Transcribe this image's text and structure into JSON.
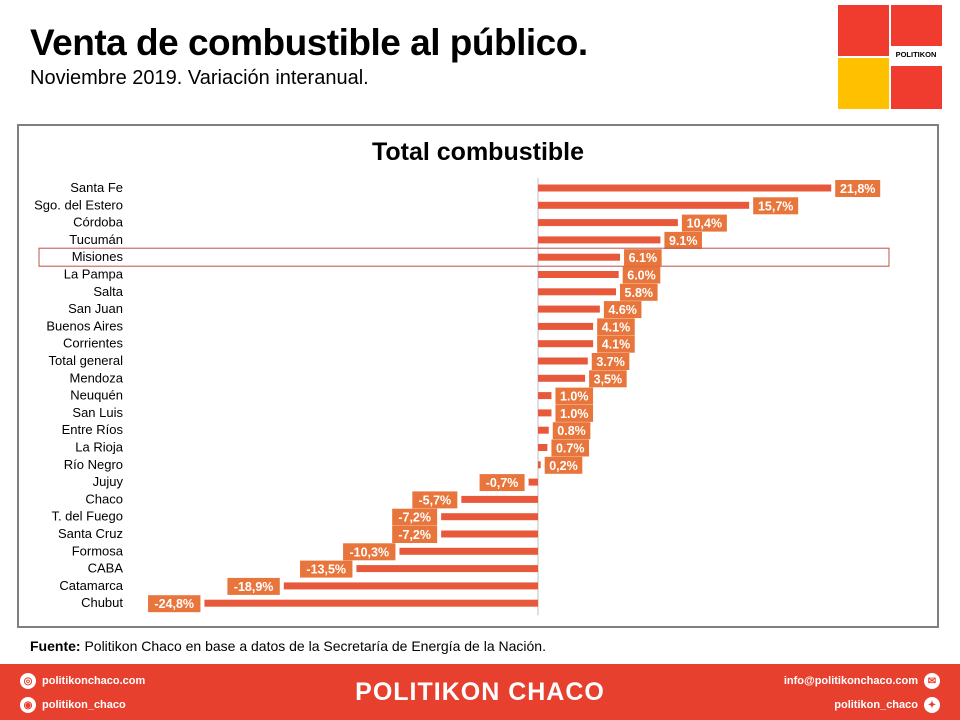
{
  "header": {
    "title": "Venta de combustible al público.",
    "subtitle": "Noviembre 2019. Variación interanual."
  },
  "logo": {
    "text": "POLITIKON",
    "colors": [
      "#f03c2e",
      "#ffc000",
      "#f03c2e",
      "#f03c2e"
    ]
  },
  "chart_data": {
    "type": "bar",
    "orientation": "horizontal",
    "title": "Total combustible",
    "categories": [
      "Santa Fe",
      "Sgo. del Estero",
      "Córdoba",
      "Tucumán",
      "Misiones",
      "La Pampa",
      "Salta",
      "San Juan",
      "Buenos Aires",
      "Corrientes",
      "Total general",
      "Mendoza",
      "Neuquén",
      "San Luis",
      "Entre Ríos",
      "La Rioja",
      "Río Negro",
      "Jujuy",
      "Chaco",
      "T. del Fuego",
      "Santa Cruz",
      "Formosa",
      "CABA",
      "Catamarca",
      "Chubut"
    ],
    "values": [
      21.8,
      15.7,
      10.4,
      9.1,
      6.1,
      6.0,
      5.8,
      4.6,
      4.1,
      4.1,
      3.7,
      3.5,
      1.0,
      1.0,
      0.8,
      0.7,
      0.2,
      -0.7,
      -5.7,
      -7.2,
      -7.2,
      -10.3,
      -13.5,
      -18.9,
      -24.8
    ],
    "value_labels": [
      "21,8%",
      "15,7%",
      "10,4%",
      "9.1%",
      "6.1%",
      "6.0%",
      "5.8%",
      "4.6%",
      "4.1%",
      "4.1%",
      "3.7%",
      "3,5%",
      "1.0%",
      "1.0%",
      "0.8%",
      "0.7%",
      "0,2%",
      "-0,7%",
      "-5,7%",
      "-7,2%",
      "-7,2%",
      "-10,3%",
      "-13,5%",
      "-18,9%",
      "-24,8%"
    ],
    "highlighted": "Misiones",
    "bar_color": "#e8593c",
    "label_color": "#e8763c",
    "highlight_color": "#c0504d",
    "xlim": [
      -30,
      26
    ]
  },
  "source": {
    "label": "Fuente:",
    "text": " Politikon Chaco en base a datos de la Secretaría  de Energía de la Nación."
  },
  "footer": {
    "brand": "POLITIKON CHACO",
    "website": "politikonchaco.com",
    "instagram": "politikon_chaco",
    "email": "info@politikonchaco.com",
    "twitter": "politikon_chaco"
  }
}
